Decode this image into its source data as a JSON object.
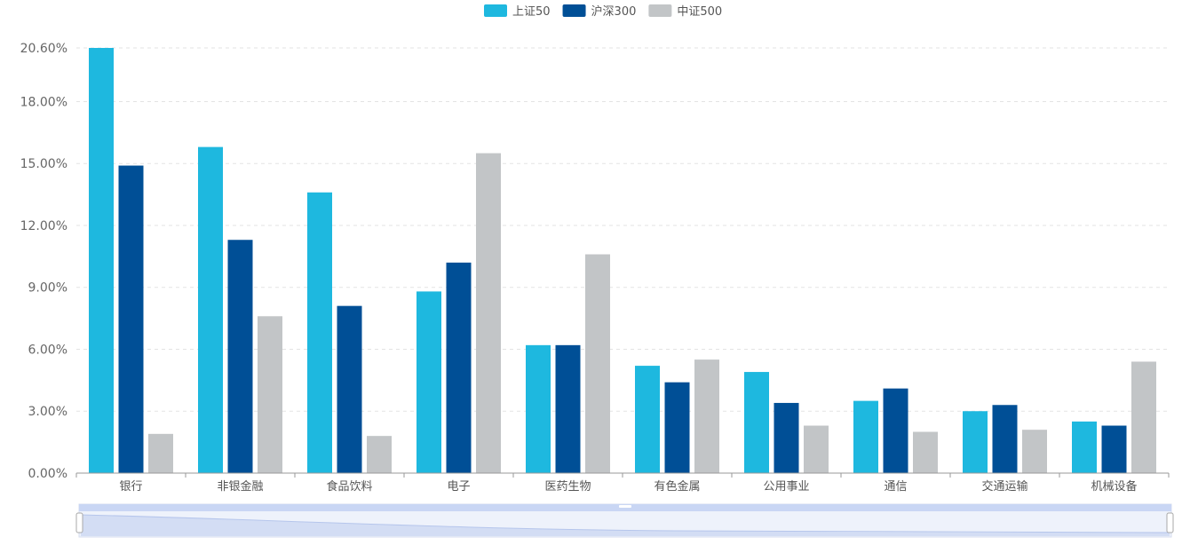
{
  "chart_data": {
    "type": "bar",
    "categories": [
      "银行",
      "非银金融",
      "食品饮料",
      "电子",
      "医药生物",
      "有色金属",
      "公用事业",
      "通信",
      "交通运输",
      "机械设备"
    ],
    "series": [
      {
        "name": "上证50",
        "color": "#1eb8df",
        "values": [
          20.6,
          15.8,
          13.6,
          8.8,
          6.2,
          5.2,
          4.9,
          3.5,
          3.0,
          2.5
        ]
      },
      {
        "name": "沪深300",
        "color": "#004f96",
        "values": [
          14.9,
          11.3,
          8.1,
          10.2,
          6.2,
          4.4,
          3.4,
          4.1,
          3.3,
          2.3
        ]
      },
      {
        "name": "中证500",
        "color": "#c2c5c7",
        "values": [
          1.9,
          7.6,
          1.8,
          15.5,
          10.6,
          5.5,
          2.3,
          2.0,
          2.1,
          5.4
        ]
      }
    ],
    "y_ticks": [
      "0.00%",
      "3.00%",
      "6.00%",
      "9.00%",
      "12.00%",
      "15.00%",
      "18.00%",
      "20.60%"
    ],
    "y_tick_values": [
      0,
      3,
      6,
      9,
      12,
      15,
      18,
      20.6
    ],
    "ylim": [
      0,
      20.6
    ],
    "grid": true,
    "legend_position": "top-center",
    "datazoom_slider": true
  }
}
